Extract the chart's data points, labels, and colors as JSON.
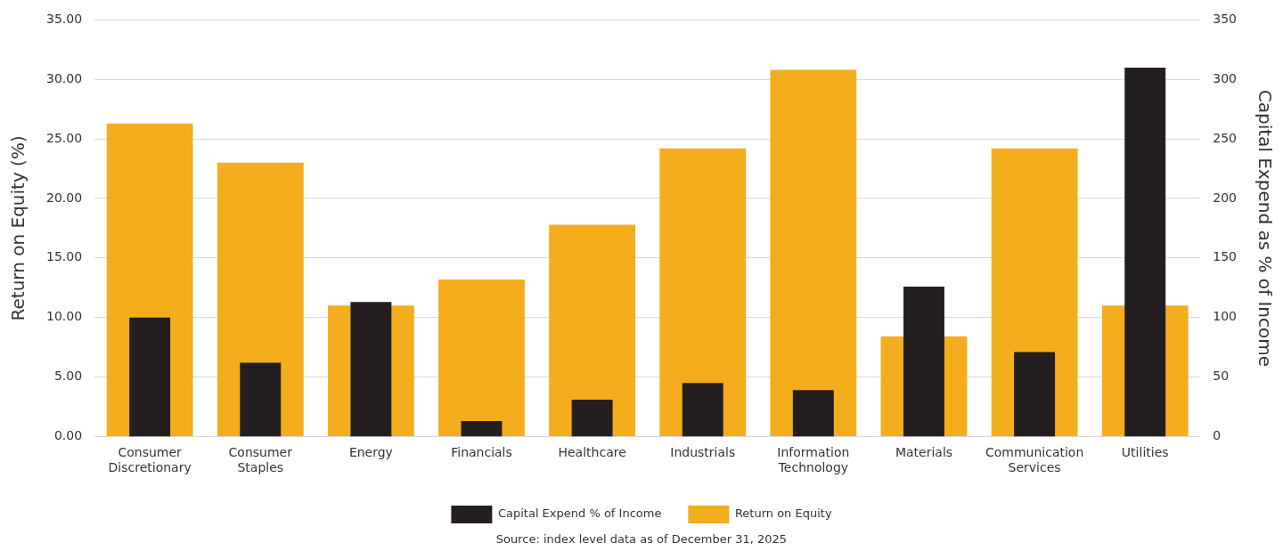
{
  "chart_data": {
    "type": "bar",
    "ylabel": "Return on Equity (%)",
    "y2label": "Capital Expend as % of Income",
    "categories": [
      [
        "Consumer",
        "Discretionary"
      ],
      [
        "Consumer",
        "Staples"
      ],
      "Energy",
      "Financials",
      "Healthcare",
      "Industrials",
      [
        "Information",
        "Technology"
      ],
      "Materials",
      [
        "Communication",
        "Services"
      ],
      "Utilities"
    ],
    "series": [
      {
        "name": "Return on Equity",
        "color": "#f4ad1d",
        "values": [
          26.3,
          23.0,
          11.0,
          13.2,
          17.8,
          24.2,
          30.8,
          8.4,
          24.2,
          11.0
        ]
      },
      {
        "name": "Capital Expend % of Income",
        "color": "#231f20",
        "axis": "y2",
        "values": [
          100,
          62,
          113,
          13,
          31,
          45,
          39,
          126,
          71,
          310
        ]
      }
    ],
    "ylim": [
      0,
      35
    ],
    "yticks": [
      {
        "value": 0,
        "label": "0.00"
      },
      {
        "value": 5,
        "label": "5.00"
      },
      {
        "value": 10,
        "label": "10.00"
      },
      {
        "value": 15,
        "label": "15.00"
      },
      {
        "value": 20,
        "label": "20.00"
      },
      {
        "value": 25,
        "label": "25.00"
      },
      {
        "value": 30,
        "label": "30.00"
      },
      {
        "value": 35,
        "label": "35.00"
      }
    ],
    "y2lim": [
      0,
      350
    ],
    "y2ticks": [
      0,
      50,
      100,
      150,
      200,
      250,
      300,
      350
    ],
    "grid": "y",
    "legend": "bottom",
    "annotations": [
      "Source: index level data as of December 31, 2025"
    ]
  }
}
